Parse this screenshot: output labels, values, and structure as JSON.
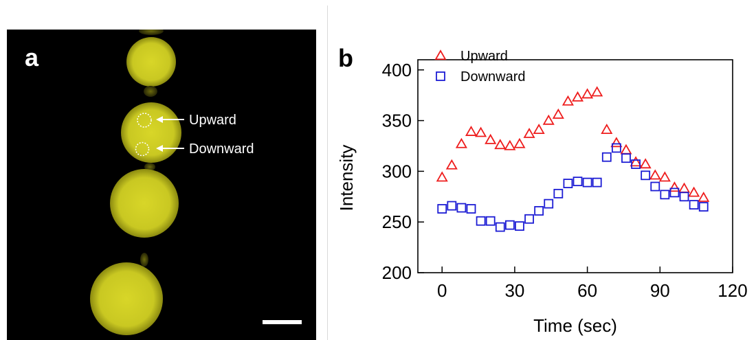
{
  "panel_a": {
    "label": "a",
    "annotations": [
      "Upward",
      "Downward"
    ],
    "colors": {
      "droplet": "#dcdc23",
      "background": "#000000",
      "annotation": "#ffffff"
    }
  },
  "chart_data": {
    "panel_label": "b",
    "type": "scatter",
    "xlabel": "Time (sec)",
    "ylabel": "Intensity",
    "xlim": [
      -10,
      120
    ],
    "ylim": [
      200,
      410
    ],
    "xticks": [
      0,
      30,
      60,
      90,
      120
    ],
    "yticks": [
      200,
      250,
      300,
      350,
      400
    ],
    "grid": false,
    "legend_position": "top-left",
    "series": [
      {
        "name": "Upward",
        "marker": "triangle",
        "color": "#ee1c1c",
        "points": [
          [
            0,
            294
          ],
          [
            4,
            306
          ],
          [
            8,
            327
          ],
          [
            12,
            339
          ],
          [
            16,
            338
          ],
          [
            20,
            331
          ],
          [
            24,
            326
          ],
          [
            28,
            325
          ],
          [
            32,
            327
          ],
          [
            36,
            337
          ],
          [
            40,
            341
          ],
          [
            44,
            350
          ],
          [
            48,
            356
          ],
          [
            52,
            369
          ],
          [
            56,
            373
          ],
          [
            60,
            376
          ],
          [
            64,
            378
          ],
          [
            68,
            341
          ],
          [
            72,
            328
          ],
          [
            76,
            321
          ],
          [
            80,
            309
          ],
          [
            84,
            307
          ],
          [
            88,
            296
          ],
          [
            92,
            294
          ],
          [
            96,
            284
          ],
          [
            100,
            283
          ],
          [
            104,
            279
          ],
          [
            108,
            274
          ]
        ]
      },
      {
        "name": "Downward",
        "marker": "square",
        "color": "#1c1cd4",
        "points": [
          [
            0,
            263
          ],
          [
            4,
            266
          ],
          [
            8,
            264
          ],
          [
            12,
            263
          ],
          [
            16,
            251
          ],
          [
            20,
            251
          ],
          [
            24,
            245
          ],
          [
            28,
            247
          ],
          [
            32,
            246
          ],
          [
            36,
            253
          ],
          [
            40,
            261
          ],
          [
            44,
            268
          ],
          [
            48,
            278
          ],
          [
            52,
            288
          ],
          [
            56,
            290
          ],
          [
            60,
            289
          ],
          [
            64,
            289
          ],
          [
            68,
            314
          ],
          [
            72,
            323
          ],
          [
            76,
            313
          ],
          [
            80,
            307
          ],
          [
            84,
            296
          ],
          [
            88,
            285
          ],
          [
            92,
            277
          ],
          [
            96,
            279
          ],
          [
            100,
            275
          ],
          [
            104,
            267
          ],
          [
            108,
            265
          ]
        ]
      }
    ]
  }
}
